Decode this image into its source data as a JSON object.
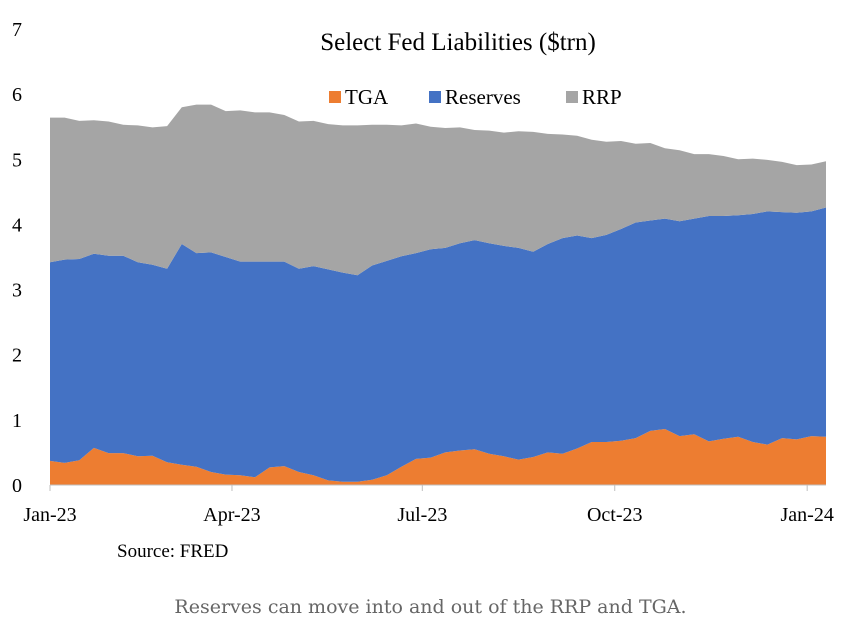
{
  "caption": "Reserves can move into and out of the RRP and TGA.",
  "chart_data": {
    "type": "area",
    "stacked": true,
    "title": "Select Fed Liabilities ($trn)",
    "xlabel": "",
    "ylabel": "",
    "source": "Source: FRED",
    "ylim": [
      0,
      7
    ],
    "yticks": [
      0,
      1,
      2,
      3,
      4,
      5,
      6,
      7
    ],
    "xlim": [
      "2023-01-04",
      "2024-01-10"
    ],
    "xticks": [
      {
        "date": "2023-01-04",
        "label": "Jan-23"
      },
      {
        "date": "2023-04-01",
        "label": "Apr-23"
      },
      {
        "date": "2023-07-01",
        "label": "Jul-23"
      },
      {
        "date": "2023-10-01",
        "label": "Oct-23"
      },
      {
        "date": "2024-01-01",
        "label": "Jan-24"
      }
    ],
    "grid": false,
    "legend": "top",
    "x": [
      "2023-01-04",
      "2023-01-11",
      "2023-01-18",
      "2023-01-25",
      "2023-02-01",
      "2023-02-08",
      "2023-02-15",
      "2023-02-22",
      "2023-03-01",
      "2023-03-08",
      "2023-03-15",
      "2023-03-22",
      "2023-03-29",
      "2023-04-05",
      "2023-04-12",
      "2023-04-19",
      "2023-04-26",
      "2023-05-03",
      "2023-05-10",
      "2023-05-17",
      "2023-05-24",
      "2023-05-31",
      "2023-06-07",
      "2023-06-14",
      "2023-06-21",
      "2023-06-28",
      "2023-07-05",
      "2023-07-12",
      "2023-07-19",
      "2023-07-26",
      "2023-08-02",
      "2023-08-09",
      "2023-08-16",
      "2023-08-23",
      "2023-08-30",
      "2023-09-06",
      "2023-09-13",
      "2023-09-20",
      "2023-09-27",
      "2023-10-04",
      "2023-10-11",
      "2023-10-18",
      "2023-10-25",
      "2023-11-01",
      "2023-11-08",
      "2023-11-15",
      "2023-11-22",
      "2023-11-29",
      "2023-12-06",
      "2023-12-13",
      "2023-12-20",
      "2023-12-27",
      "2024-01-03",
      "2024-01-10"
    ],
    "series": [
      {
        "name": "TGA",
        "color": "#ed7d31",
        "values": [
          0.37,
          0.34,
          0.38,
          0.57,
          0.49,
          0.49,
          0.44,
          0.45,
          0.35,
          0.31,
          0.28,
          0.2,
          0.16,
          0.15,
          0.12,
          0.27,
          0.29,
          0.2,
          0.15,
          0.07,
          0.05,
          0.05,
          0.08,
          0.15,
          0.28,
          0.4,
          0.42,
          0.5,
          0.53,
          0.55,
          0.48,
          0.44,
          0.39,
          0.43,
          0.5,
          0.48,
          0.56,
          0.66,
          0.66,
          0.68,
          0.72,
          0.83,
          0.86,
          0.75,
          0.78,
          0.67,
          0.71,
          0.74,
          0.66,
          0.62,
          0.72,
          0.7,
          0.75,
          0.74
        ]
      },
      {
        "name": "Reserves",
        "color": "#4472c4",
        "values": [
          3.05,
          3.12,
          3.09,
          2.98,
          3.03,
          3.03,
          2.98,
          2.93,
          2.97,
          3.39,
          3.28,
          3.37,
          3.34,
          3.28,
          3.31,
          3.16,
          3.14,
          3.12,
          3.21,
          3.24,
          3.21,
          3.17,
          3.29,
          3.29,
          3.23,
          3.16,
          3.2,
          3.14,
          3.18,
          3.21,
          3.23,
          3.23,
          3.25,
          3.15,
          3.2,
          3.31,
          3.27,
          3.13,
          3.18,
          3.25,
          3.31,
          3.23,
          3.23,
          3.3,
          3.31,
          3.46,
          3.42,
          3.4,
          3.5,
          3.58,
          3.47,
          3.48,
          3.45,
          3.52
        ]
      },
      {
        "name": "RRP",
        "color": "#a5a5a5",
        "values": [
          2.22,
          2.18,
          2.12,
          2.05,
          2.06,
          2.01,
          2.1,
          2.11,
          2.19,
          2.1,
          2.28,
          2.27,
          2.24,
          2.32,
          2.29,
          2.29,
          2.25,
          2.26,
          2.23,
          2.23,
          2.26,
          2.3,
          2.16,
          2.09,
          2.01,
          1.99,
          1.88,
          1.84,
          1.78,
          1.69,
          1.73,
          1.74,
          1.79,
          1.84,
          1.69,
          1.59,
          1.53,
          1.51,
          1.43,
          1.35,
          1.21,
          1.19,
          1.08,
          1.09,
          0.99,
          0.95,
          0.92,
          0.86,
          0.85,
          0.79,
          0.77,
          0.73,
          0.72,
          0.71
        ]
      }
    ]
  }
}
